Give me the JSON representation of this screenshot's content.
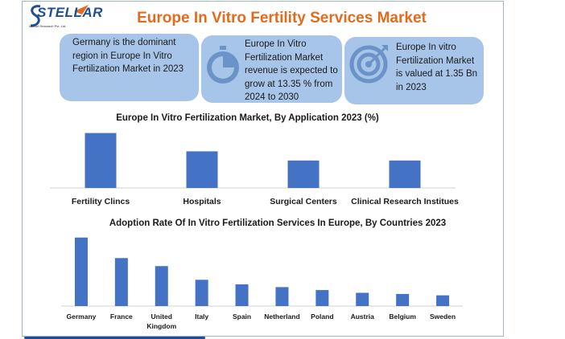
{
  "brand": {
    "name": "STELLAR",
    "tagline": "Market Research Pvt. Ltd."
  },
  "title": "Europe In Vitro Fertility Services Market",
  "cards": [
    {
      "text": "Germany is the dominant region in Europe In Vitro Fertilization Market in 2023",
      "icon": "none"
    },
    {
      "text": "Europe In Vitro Fertilization Market revenue is expected to grow at 13.35 % from 2024 to 2030",
      "icon": "stopwatch-icon"
    },
    {
      "text": "Europe In vitro Fertilization Market is valued at 1.35 Bn in 2023",
      "icon": "target-icon"
    }
  ],
  "colors": {
    "bar": "#4472c4",
    "title": "#e26b1c",
    "card": "#a7c5e9",
    "brand": "#1f4f93"
  },
  "chart_data": [
    {
      "type": "bar",
      "title": "Europe In Vitro Fertilization Market, By Application 2023 (%)",
      "categories": [
        "Fertility Clincs",
        "Hospitals",
        "Surgical Centers",
        "Clinical Research Institues"
      ],
      "values": [
        36,
        24,
        18,
        18
      ],
      "ylim": [
        0,
        40
      ],
      "grid": false,
      "legend": "none"
    },
    {
      "type": "bar",
      "title": "Adoption Rate Of In Vitro Fertilization Services In Europe, By Countries 2023",
      "categories": [
        "Germany",
        "France",
        "United Kingdom",
        "Italy",
        "Spain",
        "Netherland",
        "Poland",
        "Austria",
        "Belgium",
        "Sweden"
      ],
      "values": [
        30,
        21,
        17.5,
        11.5,
        9.5,
        8.3,
        7,
        5.8,
        5.3,
        4.7
      ],
      "ylim": [
        0,
        32
      ],
      "grid": false,
      "legend": "none"
    }
  ]
}
